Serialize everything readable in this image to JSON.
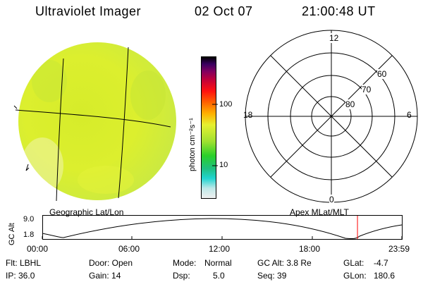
{
  "header": {
    "instrument": "Ultraviolet Imager",
    "date": "02 Oct 07",
    "time": "21:00:48 UT"
  },
  "images": {
    "left_label": "Geographic Lat/Lon",
    "right_label": "Apex MLat/MLT",
    "disk_color": "#dcef2a"
  },
  "colorbar": {
    "units_label": "photon cm⁻²s⁻¹",
    "tick_100": "100",
    "tick_10": "10",
    "stops": [
      "#f0f0f0",
      "#bfe8e8",
      "#20d4d0",
      "#20c080",
      "#2ad02a",
      "#9ee030",
      "#e6f030",
      "#ffb000",
      "#ff6000",
      "#ff1010",
      "#c0003a",
      "#800060",
      "#3a0060",
      "#000000"
    ]
  },
  "polar": {
    "mlt_12": "12",
    "mlt_18": "18",
    "mlt_6": "6",
    "mlt_0": "0",
    "lat_60": "60",
    "lat_70": "70",
    "lat_80": "80"
  },
  "altitude_plot": {
    "ylabel": "GC Alt",
    "y_max": "9.0",
    "y_min": "1.8",
    "x_ticks": [
      "00:00",
      "06:00",
      "12:00",
      "18:00",
      "23:59"
    ],
    "current_time_marker_color": "#ff0000",
    "current_time_fraction": 0.8756
  },
  "info": {
    "flt": "Flt: LBHL",
    "door": "Door: Open",
    "mode_label": "Mode:",
    "mode_value": "Normal",
    "gc_alt": "GC Alt: 3.8 Re",
    "glat_label": "GLat:",
    "glat_value": "-4.7",
    "ip": "IP: 36.0",
    "gain": "Gain: 14",
    "dsp_label": "Dsp:",
    "dsp_value": "5.0",
    "seq": "Seq: 39",
    "glon_label": "GLon:",
    "glon_value": "180.6"
  }
}
